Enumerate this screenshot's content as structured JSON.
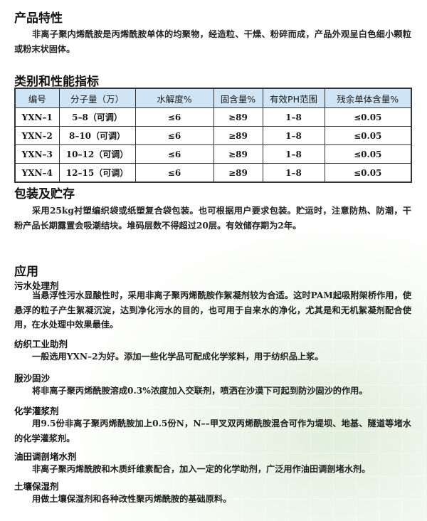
{
  "features": {
    "title": "产品特性",
    "text": "非离子聚内烯酰胺是丙烯酰胺单体的均聚物，经造粒、干燥、粉碎而成，产品外观呈白色细小颗粒或粉末状固体。"
  },
  "specs": {
    "title": "类别和性能指标",
    "headers": [
      "编号",
      "分子量（万）",
      "水解度%",
      "固含量%",
      "有效PH范围",
      "残余单体含量%"
    ],
    "rows": [
      [
        "YXN–1",
        "5–8（可调）",
        "≤6",
        "≥89",
        "1–8",
        "≤0.05"
      ],
      [
        "YXN–2",
        "8–10（可调）",
        "≤6",
        "≥89",
        "1–8",
        "≤0.05"
      ],
      [
        "YXN–3",
        "10–12（可调）",
        "≤6",
        "≥89",
        "1–8",
        "≤0.05"
      ],
      [
        "YXN–4",
        "12–15（可调）",
        "≤6",
        "≥89",
        "1–8",
        "≤0.05"
      ]
    ]
  },
  "packaging": {
    "title": "包装及贮存",
    "text": "采用25kg衬塑编织袋或纸塑复合袋包装。也可根据用户要求包装。贮运时，注意防热、防潮，干粉产品长期露置会吸潮结块。堆码层数不得超过20层。有效储存期为2年。"
  },
  "applications": {
    "title": "应用",
    "items": [
      {
        "title": "污水处理剂",
        "text": "当悬浮性污水显酸性时，采用非离子聚丙烯酰胺作絮凝剂较为合适。这时PAM起吸附架桥作用，使悬浮的粒子产生絮凝沉淀，达到净化污水的目的，也可用于自来水的净化，尤其是和无机絮凝剂配合使用，在水处理中效果最佳。"
      },
      {
        "title": "纺织工业助剂",
        "text": "一般选用YXN–2为好。添加一些化学品可配成化学浆料，用于纺织品上浆。"
      },
      {
        "title": "服沙固沙",
        "text": "将非离子聚丙烯酰胺溶成0.3%浓度加入交联剂，喷洒在沙漠下可起到防沙固沙的作用。"
      },
      {
        "title": "化学灌浆剂",
        "text": "用9.5份非离子聚丙烯酰胺加上0.5份N，N––甲叉双丙烯酰胺混合可作为堤坝、地基、隧道等堵水的化学灌浆剂。"
      },
      {
        "title": "油田调剖堵水剂",
        "text": "非离子聚丙烯酰胺和木质纤维素配合，加入一定的化学助剂，广泛用作油田调剖堵水剂。"
      },
      {
        "title": "土壤保湿剂",
        "text": "用做土壤保湿剂和各种改性聚丙烯酰胺的基础原料。"
      }
    ]
  }
}
